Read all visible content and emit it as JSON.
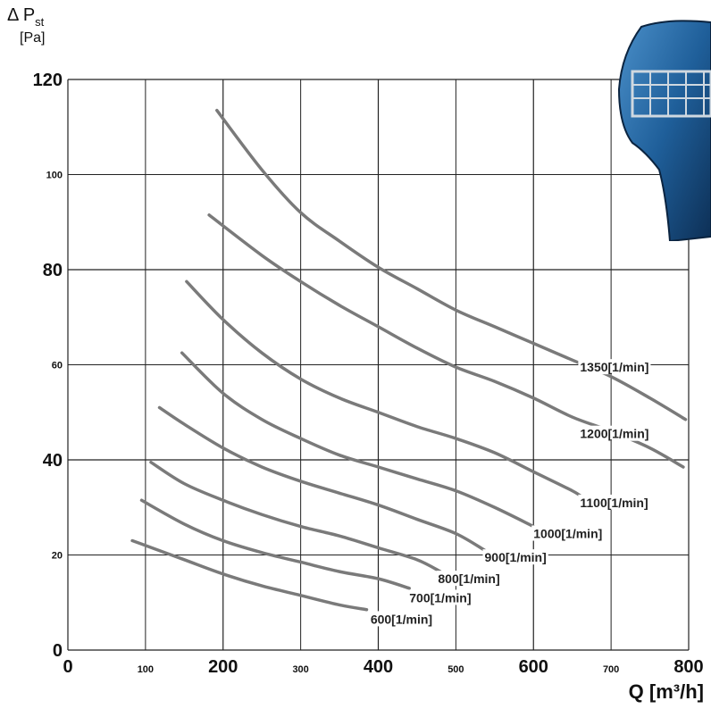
{
  "chart_data": {
    "type": "line",
    "title": "",
    "ylabel": "Δ Pst",
    "ylabel_symbol": "Δ P",
    "ylabel_subscript": "st",
    "ylabel_unit": "[Pa]",
    "xlabel": "Q [m³/h]",
    "xlim": [
      0,
      800
    ],
    "ylim": [
      0,
      120
    ],
    "grid": true,
    "x_ticks": [
      {
        "value": 0,
        "label": "0",
        "size": "large"
      },
      {
        "value": 100,
        "label": "100",
        "size": "small"
      },
      {
        "value": 200,
        "label": "200",
        "size": "large"
      },
      {
        "value": 300,
        "label": "300",
        "size": "small"
      },
      {
        "value": 400,
        "label": "400",
        "size": "large"
      },
      {
        "value": 500,
        "label": "500",
        "size": "small"
      },
      {
        "value": 600,
        "label": "600",
        "size": "large"
      },
      {
        "value": 700,
        "label": "700",
        "size": "small"
      },
      {
        "value": 800,
        "label": "800",
        "size": "large"
      }
    ],
    "y_ticks": [
      {
        "value": 0,
        "label": "0",
        "size": "large"
      },
      {
        "value": 20,
        "label": "20",
        "size": "small"
      },
      {
        "value": 40,
        "label": "40",
        "size": "large"
      },
      {
        "value": 60,
        "label": "60",
        "size": "small"
      },
      {
        "value": 80,
        "label": "80",
        "size": "large"
      },
      {
        "value": 100,
        "label": "100",
        "size": "small"
      },
      {
        "value": 120,
        "label": "120",
        "size": "large"
      }
    ],
    "series": [
      {
        "name": "1350[1/min]",
        "label_at": [
          660,
          59.5
        ],
        "points": [
          [
            192,
            113.5
          ],
          [
            250,
            101
          ],
          [
            300,
            92
          ],
          [
            350,
            86
          ],
          [
            400,
            80.5
          ],
          [
            450,
            76
          ],
          [
            500,
            71.5
          ],
          [
            550,
            68
          ],
          [
            600,
            64.5
          ],
          [
            650,
            61
          ],
          [
            700,
            57.5
          ],
          [
            750,
            53
          ],
          [
            796,
            48.5
          ]
        ]
      },
      {
        "name": "1200[1/min]",
        "label_at": [
          660,
          45.5
        ],
        "points": [
          [
            182,
            91.5
          ],
          [
            250,
            83
          ],
          [
            300,
            77.5
          ],
          [
            350,
            72.5
          ],
          [
            400,
            68
          ],
          [
            450,
            63.5
          ],
          [
            500,
            59.5
          ],
          [
            550,
            56.5
          ],
          [
            600,
            53
          ],
          [
            650,
            49
          ],
          [
            700,
            46
          ],
          [
            750,
            42.5
          ],
          [
            793,
            38.5
          ]
        ]
      },
      {
        "name": "1100[1/min]",
        "label_at": [
          660,
          31
        ],
        "points": [
          [
            153,
            77.5
          ],
          [
            200,
            69.5
          ],
          [
            250,
            62.5
          ],
          [
            300,
            57
          ],
          [
            350,
            53
          ],
          [
            400,
            50
          ],
          [
            450,
            47
          ],
          [
            500,
            44.5
          ],
          [
            550,
            41.5
          ],
          [
            600,
            37.5
          ],
          [
            650,
            33.5
          ],
          [
            664,
            32
          ]
        ]
      },
      {
        "name": "1000[1/min]",
        "label_at": [
          600,
          24.5
        ],
        "points": [
          [
            147,
            62.5
          ],
          [
            200,
            54
          ],
          [
            250,
            48.5
          ],
          [
            300,
            44.5
          ],
          [
            350,
            41
          ],
          [
            400,
            38.5
          ],
          [
            450,
            36
          ],
          [
            500,
            33.5
          ],
          [
            550,
            30
          ],
          [
            600,
            26
          ]
        ]
      },
      {
        "name": "900[1/min]",
        "label_at": [
          537,
          19.5
        ],
        "points": [
          [
            118,
            51
          ],
          [
            150,
            47.5
          ],
          [
            200,
            42.5
          ],
          [
            250,
            38.5
          ],
          [
            300,
            35.5
          ],
          [
            350,
            33
          ],
          [
            400,
            30.5
          ],
          [
            450,
            27.5
          ],
          [
            500,
            24.5
          ],
          [
            537,
            21
          ]
        ]
      },
      {
        "name": "800[1/min]",
        "label_at": [
          477,
          15
        ],
        "points": [
          [
            107,
            39.5
          ],
          [
            150,
            35
          ],
          [
            200,
            31.5
          ],
          [
            250,
            28.5
          ],
          [
            300,
            26
          ],
          [
            350,
            24
          ],
          [
            400,
            21.5
          ],
          [
            450,
            19
          ],
          [
            480,
            16.5
          ]
        ]
      },
      {
        "name": "700[1/min]",
        "label_at": [
          440,
          11
        ],
        "points": [
          [
            95,
            31.5
          ],
          [
            150,
            26.5
          ],
          [
            200,
            23
          ],
          [
            250,
            20.5
          ],
          [
            300,
            18.5
          ],
          [
            350,
            16.5
          ],
          [
            400,
            15
          ],
          [
            440,
            13
          ]
        ]
      },
      {
        "name": "600[1/min]",
        "label_at": [
          390,
          6.5
        ],
        "points": [
          [
            83,
            23
          ],
          [
            100,
            22
          ],
          [
            150,
            19
          ],
          [
            200,
            16
          ],
          [
            250,
            13.5
          ],
          [
            300,
            11.5
          ],
          [
            350,
            9.5
          ],
          [
            385,
            8.5
          ]
        ]
      }
    ],
    "line_color": "#7a7a7a"
  }
}
